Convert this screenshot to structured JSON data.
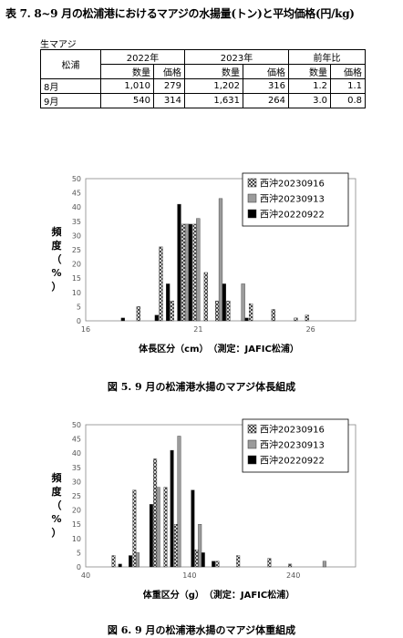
{
  "table": {
    "title": "表 7. 8~9 月の松浦港におけるマアジの水揚量(トン)と平均価格(円/kg)",
    "subtitle": "生マアジ",
    "row_header": "松浦",
    "year_2022": "2022年",
    "year_2023": "2023年",
    "ratio": "前年比",
    "qty_label": "数量",
    "price_label": "価格",
    "rows": [
      {
        "month": "8月",
        "q2022": "1,010",
        "p2022": "279",
        "q2023": "1,202",
        "p2023": "316",
        "rq": "1.2",
        "rp": "1.1"
      },
      {
        "month": "9月",
        "q2022": "540",
        "p2022": "314",
        "q2023": "1,631",
        "p2023": "264",
        "rq": "3.0",
        "rp": "0.8"
      }
    ]
  },
  "chart_data": [
    {
      "type": "bar",
      "caption": "図 5. 9 月の松浦港水揚のマアジ体長組成",
      "xlabel": "体長区分（cm）　（測定：JAFIC松浦）",
      "ylabel": "頻度（%）",
      "xlim": [
        16,
        28
      ],
      "xtick_values": [
        16,
        21,
        26
      ],
      "ylim": [
        0,
        50
      ],
      "yticks": [
        0,
        5,
        10,
        15,
        20,
        25,
        30,
        35,
        40,
        45,
        50
      ],
      "x": [
        17.5,
        18,
        18.5,
        19,
        19.5,
        20,
        20.5,
        21,
        21.5,
        22,
        22.5,
        23,
        23.5,
        24,
        24.5,
        25,
        25.5,
        26
      ],
      "series": [
        {
          "name": "西沖20230916",
          "values": [
            0,
            0,
            5,
            0,
            26,
            7,
            34,
            34,
            17,
            7,
            7,
            0,
            6,
            0,
            4,
            0,
            1,
            2
          ]
        },
        {
          "name": "西沖20230913",
          "values": [
            0,
            0,
            0,
            0,
            0,
            0,
            34,
            36,
            0,
            43,
            0,
            13,
            0,
            0,
            0,
            0,
            0,
            0
          ]
        },
        {
          "name": "西沖20220922",
          "values": [
            1,
            0,
            0,
            2,
            13,
            41,
            34,
            0,
            0,
            13,
            0,
            1,
            0,
            0,
            0,
            0,
            0,
            0
          ]
        }
      ],
      "legend_position": "top-right",
      "colors": {
        "s1": "checker",
        "s2": "#9b9b9b",
        "s3": "#000000"
      }
    },
    {
      "type": "bar",
      "caption": "図 6. 9 月の松浦港水揚のマアジ体重組成",
      "xlabel": "体重区分（g）　（測定：JAFIC松浦）",
      "ylabel": "頻度（%）",
      "xlim": [
        40,
        300
      ],
      "xtick_values": [
        40,
        140,
        240
      ],
      "ylim": [
        0,
        50
      ],
      "yticks": [
        0,
        5,
        10,
        15,
        20,
        25,
        30,
        35,
        40,
        45,
        50
      ],
      "x": [
        70,
        80,
        90,
        100,
        110,
        120,
        130,
        140,
        150,
        160,
        170,
        180,
        190,
        200,
        210,
        220,
        230,
        240,
        250,
        260,
        270,
        280
      ],
      "series": [
        {
          "name": "西沖20230916",
          "values": [
            4,
            0,
            27,
            0,
            38,
            28,
            15,
            0,
            6,
            0,
            2,
            0,
            4,
            0,
            0,
            3,
            0,
            1,
            0,
            0,
            0,
            0
          ]
        },
        {
          "name": "西沖20230913",
          "values": [
            0,
            0,
            5,
            0,
            28,
            0,
            46,
            0,
            15,
            0,
            0,
            0,
            0,
            0,
            0,
            0,
            0,
            0,
            0,
            0,
            2,
            0
          ]
        },
        {
          "name": "西沖20220922",
          "values": [
            1,
            4,
            0,
            22,
            0,
            41,
            0,
            27,
            5,
            2,
            0,
            0,
            0,
            0,
            0,
            0,
            0,
            0,
            0,
            0,
            0,
            0
          ]
        }
      ],
      "legend_position": "top-right",
      "colors": {
        "s1": "checker",
        "s2": "#9b9b9b",
        "s3": "#000000"
      }
    }
  ]
}
